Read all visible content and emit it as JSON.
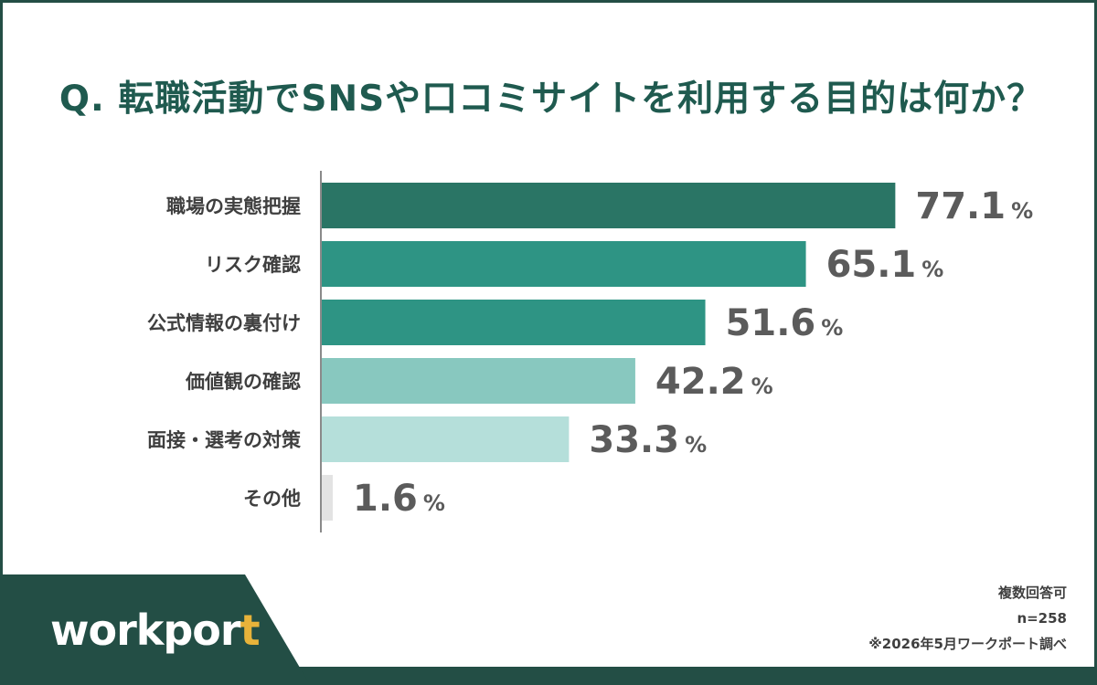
{
  "title": "Q. 転職活動でSNSや口コミサイトを利用する目的は何か？",
  "logo": {
    "main": "workpor",
    "accent": "t"
  },
  "notes": {
    "multiple": "複数回答可",
    "n": "n=258",
    "source": "※2026年5月ワークポート調べ"
  },
  "colors": {
    "border": "#234e45",
    "title": "#1f5a4f",
    "logo_accent": "#e8b33a"
  },
  "chart_data": {
    "type": "bar",
    "orientation": "horizontal",
    "title": "Q. 転職活動でSNSや口コミサイトを利用する目的は何か？",
    "xlabel": "",
    "ylabel": "",
    "unit": "%",
    "xlim": [
      0,
      100
    ],
    "grid": false,
    "categories": [
      "職場の実態把握",
      "リスク確認",
      "公式情報の裏付け",
      "価値観の確認",
      "面接・選考の対策",
      "その他"
    ],
    "values": [
      77.1,
      65.1,
      51.6,
      42.2,
      33.3,
      1.6
    ],
    "value_labels": [
      "77.1",
      "65.1",
      "51.6",
      "42.2",
      "33.3",
      "1.6"
    ],
    "bar_colors": [
      "#2a7565",
      "#2e9484",
      "#2e9484",
      "#88c8bf",
      "#b5dfda",
      "#e3e3e3"
    ]
  }
}
